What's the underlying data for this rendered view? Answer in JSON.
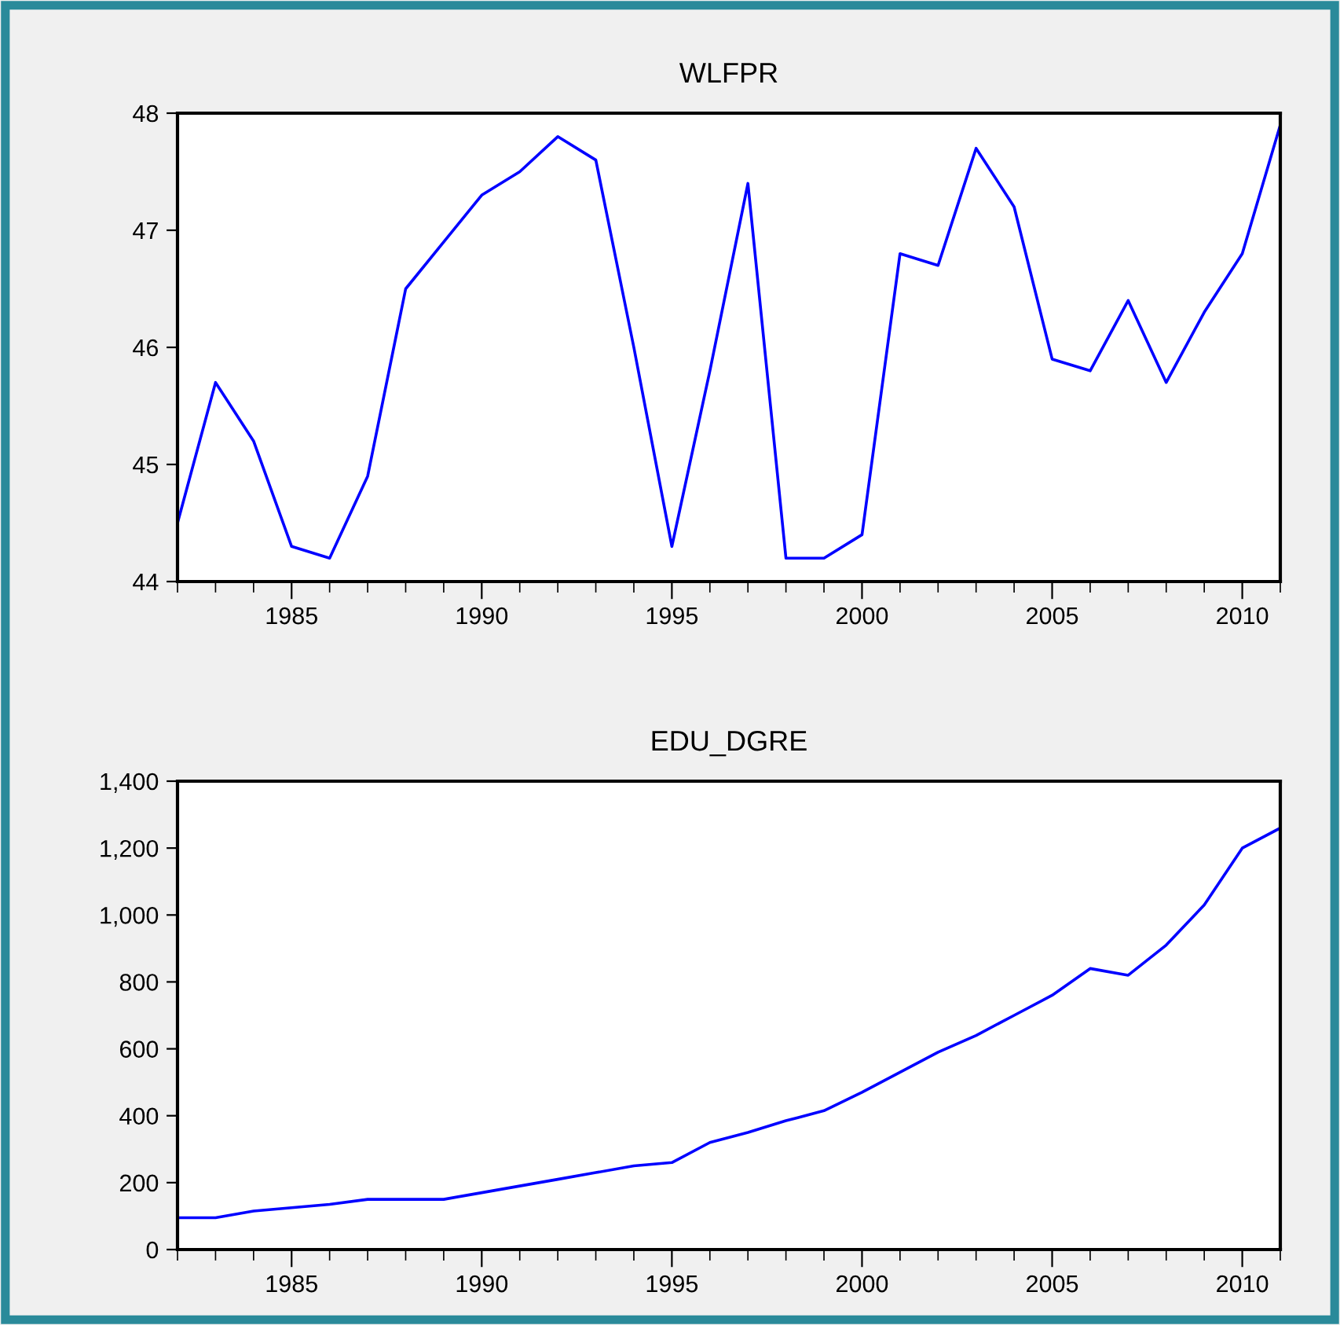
{
  "chart_data": [
    {
      "type": "line",
      "title": "WLFPR",
      "x": [
        1982,
        1983,
        1984,
        1985,
        1986,
        1987,
        1988,
        1989,
        1990,
        1991,
        1992,
        1993,
        1994,
        1995,
        1996,
        1997,
        1998,
        1999,
        2000,
        2001,
        2002,
        2003,
        2004,
        2005,
        2006,
        2007,
        2008,
        2009,
        2010,
        2011
      ],
      "series": [
        {
          "color": "#0000ff",
          "values": [
            44.5,
            45.7,
            45.2,
            44.3,
            44.2,
            44.9,
            46.5,
            46.9,
            47.3,
            47.5,
            47.8,
            47.6,
            46.0,
            44.3,
            45.8,
            47.4,
            44.2,
            44.2,
            44.4,
            46.8,
            46.7,
            47.7,
            47.2,
            45.9,
            45.8,
            46.4,
            45.7,
            46.3,
            46.8,
            47.9
          ]
        }
      ],
      "xlim": [
        1982,
        2011
      ],
      "ylim": [
        44,
        48
      ],
      "yticks": [
        44,
        45,
        46,
        47,
        48
      ],
      "xticks": [
        {
          "value": 1982,
          "label": null
        },
        {
          "value": 1983,
          "label": null
        },
        {
          "value": 1984,
          "label": null
        },
        1985,
        {
          "value": 1986,
          "label": null
        },
        {
          "value": 1987,
          "label": null
        },
        {
          "value": 1988,
          "label": null
        },
        {
          "value": 1989,
          "label": null
        },
        1990,
        {
          "value": 1991,
          "label": null
        },
        {
          "value": 1992,
          "label": null
        },
        {
          "value": 1993,
          "label": null
        },
        {
          "value": 1994,
          "label": null
        },
        1995,
        {
          "value": 1996,
          "label": null
        },
        {
          "value": 1997,
          "label": null
        },
        {
          "value": 1998,
          "label": null
        },
        {
          "value": 1999,
          "label": null
        },
        2000,
        {
          "value": 2001,
          "label": null
        },
        {
          "value": 2002,
          "label": null
        },
        {
          "value": 2003,
          "label": null
        },
        {
          "value": 2004,
          "label": null
        },
        2005,
        {
          "value": 2006,
          "label": null
        },
        {
          "value": 2007,
          "label": null
        },
        {
          "value": 2008,
          "label": null
        },
        {
          "value": 2009,
          "label": null
        },
        2010,
        {
          "value": 2011,
          "label": null
        }
      ],
      "grid": false,
      "line_style": "solid",
      "marker": "none"
    },
    {
      "type": "line",
      "title": "EDU_DGRE",
      "x": [
        1982,
        1983,
        1984,
        1985,
        1986,
        1987,
        1988,
        1989,
        1990,
        1991,
        1992,
        1993,
        1994,
        1995,
        1996,
        1997,
        1998,
        1999,
        2000,
        2001,
        2002,
        2003,
        2004,
        2005,
        2006,
        2007,
        2008,
        2009,
        2010,
        2011
      ],
      "series": [
        {
          "color": "#0000ff",
          "values": [
            95,
            95,
            115,
            125,
            135,
            150,
            150,
            150,
            170,
            190,
            210,
            230,
            250,
            260,
            320,
            350,
            385,
            415,
            470,
            530,
            590,
            640,
            700,
            760,
            840,
            820,
            910,
            1030,
            1200,
            1260
          ]
        }
      ],
      "xlim": [
        1982,
        2011
      ],
      "ylim": [
        0,
        1400
      ],
      "yticks": [
        0,
        {
          "value": 200,
          "label": "200"
        },
        {
          "value": 400,
          "label": "400"
        },
        {
          "value": 600,
          "label": "600"
        },
        {
          "value": 800,
          "label": "800"
        },
        {
          "value": 1000,
          "label": "1,000"
        },
        {
          "value": 1200,
          "label": "1,200"
        },
        {
          "value": 1400,
          "label": "1,400"
        }
      ],
      "xticks": [
        {
          "value": 1982,
          "label": null
        },
        {
          "value": 1983,
          "label": null
        },
        {
          "value": 1984,
          "label": null
        },
        1985,
        {
          "value": 1986,
          "label": null
        },
        {
          "value": 1987,
          "label": null
        },
        {
          "value": 1988,
          "label": null
        },
        {
          "value": 1989,
          "label": null
        },
        1990,
        {
          "value": 1991,
          "label": null
        },
        {
          "value": 1992,
          "label": null
        },
        {
          "value": 1993,
          "label": null
        },
        {
          "value": 1994,
          "label": null
        },
        1995,
        {
          "value": 1996,
          "label": null
        },
        {
          "value": 1997,
          "label": null
        },
        {
          "value": 1998,
          "label": null
        },
        {
          "value": 1999,
          "label": null
        },
        2000,
        {
          "value": 2001,
          "label": null
        },
        {
          "value": 2002,
          "label": null
        },
        {
          "value": 2003,
          "label": null
        },
        {
          "value": 2004,
          "label": null
        },
        2005,
        {
          "value": 2006,
          "label": null
        },
        {
          "value": 2007,
          "label": null
        },
        {
          "value": 2008,
          "label": null
        },
        {
          "value": 2009,
          "label": null
        },
        2010,
        {
          "value": 2011,
          "label": null
        }
      ],
      "grid": false,
      "line_style": "solid",
      "marker": "none"
    }
  ]
}
